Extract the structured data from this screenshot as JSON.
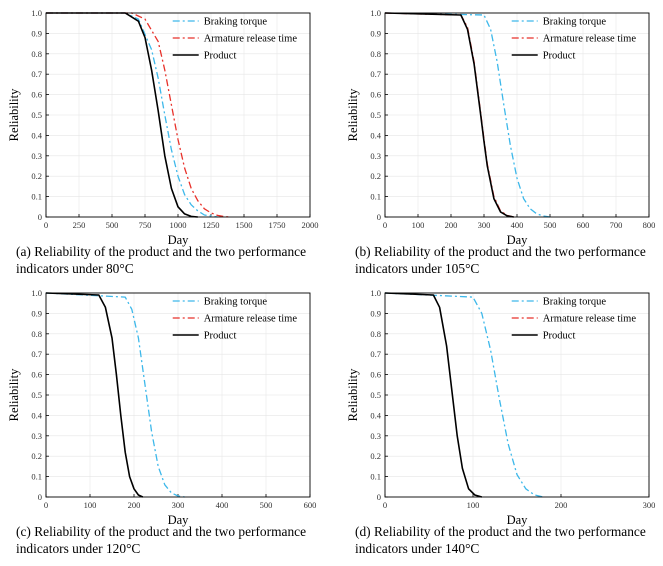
{
  "legend": {
    "braking_torque": "Braking torque",
    "armature_release_time": "Armature release time",
    "product": "Product"
  },
  "colors": {
    "braking_torque": "#3db8ea",
    "armature_release_time": "#e8312a",
    "product": "#000000"
  },
  "chart_data": [
    {
      "type": "line",
      "caption_line1": "(a) Reliability of the product and the two performance",
      "caption_line2": "indicators under 80°C",
      "xlabel": "Day",
      "ylabel": "Reliability",
      "xlim": [
        0,
        2000
      ],
      "ylim": [
        0,
        1.0
      ],
      "xticks": [
        "0",
        "250",
        "500",
        "750",
        "1000",
        "1250",
        "1500",
        "1750",
        "2000"
      ],
      "yticks": [
        "0",
        "0.1",
        "0.2",
        "0.3",
        "0.4",
        "0.5",
        "0.6",
        "0.7",
        "0.8",
        "0.9",
        "1.0"
      ],
      "series": [
        {
          "name": "Braking torque",
          "x": [
            0,
            600,
            700,
            800,
            850,
            900,
            950,
            1000,
            1050,
            1100,
            1150,
            1200,
            1250,
            1300
          ],
          "y": [
            1.0,
            1.0,
            0.97,
            0.82,
            0.68,
            0.5,
            0.33,
            0.2,
            0.11,
            0.06,
            0.03,
            0.01,
            0.005,
            0.0
          ]
        },
        {
          "name": "Armature release time",
          "x": [
            0,
            650,
            750,
            850,
            900,
            950,
            1000,
            1050,
            1100,
            1150,
            1200,
            1250,
            1300,
            1350,
            1400
          ],
          "y": [
            1.0,
            1.0,
            0.97,
            0.86,
            0.72,
            0.55,
            0.38,
            0.24,
            0.14,
            0.08,
            0.04,
            0.02,
            0.008,
            0.002,
            0.0
          ]
        },
        {
          "name": "Product",
          "x": [
            0,
            600,
            700,
            750,
            800,
            850,
            900,
            950,
            1000,
            1050,
            1100,
            1150
          ],
          "y": [
            1.0,
            1.0,
            0.96,
            0.88,
            0.72,
            0.52,
            0.3,
            0.14,
            0.05,
            0.015,
            0.003,
            0.0
          ]
        }
      ]
    },
    {
      "type": "line",
      "caption_line1": "(b) Reliability of the product and the two performance",
      "caption_line2": "indicators under 105°C",
      "xlabel": "Day",
      "ylabel": "Reliability",
      "xlim": [
        0,
        800
      ],
      "ylim": [
        0,
        1.0
      ],
      "xticks": [
        "0",
        "100",
        "200",
        "300",
        "400",
        "500",
        "600",
        "700",
        "800"
      ],
      "yticks": [
        "0",
        "0.1",
        "0.2",
        "0.3",
        "0.4",
        "0.5",
        "0.6",
        "0.7",
        "0.8",
        "0.9",
        "1.0"
      ],
      "series": [
        {
          "name": "Braking torque",
          "x": [
            0,
            300,
            320,
            340,
            360,
            380,
            400,
            420,
            440,
            460,
            480,
            500
          ],
          "y": [
            1.0,
            0.99,
            0.92,
            0.76,
            0.55,
            0.35,
            0.19,
            0.09,
            0.04,
            0.015,
            0.005,
            0.0
          ]
        },
        {
          "name": "Armature release time",
          "x": [
            0,
            230,
            250,
            270,
            290,
            300,
            310,
            330,
            350,
            370,
            390
          ],
          "y": [
            1.0,
            0.99,
            0.93,
            0.76,
            0.51,
            0.38,
            0.26,
            0.1,
            0.03,
            0.008,
            0.0
          ]
        },
        {
          "name": "Product",
          "x": [
            0,
            230,
            250,
            270,
            290,
            300,
            310,
            330,
            350,
            370,
            390
          ],
          "y": [
            1.0,
            0.99,
            0.92,
            0.75,
            0.5,
            0.37,
            0.25,
            0.09,
            0.025,
            0.006,
            0.0
          ]
        }
      ]
    },
    {
      "type": "line",
      "caption_line1": "(c) Reliability of the product and the two performance",
      "caption_line2": "indicators under 120°C",
      "xlabel": "Day",
      "ylabel": "Reliability",
      "xlim": [
        0,
        600
      ],
      "ylim": [
        0,
        1.0
      ],
      "xticks": [
        "0",
        "100",
        "200",
        "300",
        "400",
        "500",
        "600"
      ],
      "yticks": [
        "0",
        "0.1",
        "0.2",
        "0.3",
        "0.4",
        "0.5",
        "0.6",
        "0.7",
        "0.8",
        "0.9",
        "1.0"
      ],
      "series": [
        {
          "name": "Braking torque",
          "x": [
            0,
            180,
            195,
            210,
            225,
            240,
            255,
            270,
            285,
            300,
            315
          ],
          "y": [
            1.0,
            0.98,
            0.92,
            0.78,
            0.55,
            0.32,
            0.15,
            0.06,
            0.02,
            0.005,
            0.0
          ]
        },
        {
          "name": "Armature release time",
          "x": [],
          "y": []
        },
        {
          "name": "Product",
          "x": [
            0,
            120,
            135,
            150,
            160,
            170,
            180,
            190,
            200,
            210,
            220
          ],
          "y": [
            1.0,
            0.99,
            0.93,
            0.78,
            0.6,
            0.4,
            0.22,
            0.1,
            0.04,
            0.01,
            0.0
          ]
        }
      ]
    },
    {
      "type": "line",
      "caption_line1": "(d) Reliability of the product and the two performance",
      "caption_line2": "indicators under 140°C",
      "xlabel": "Day",
      "ylabel": "Reliability",
      "xlim": [
        0,
        300
      ],
      "ylim": [
        0,
        1.0
      ],
      "xticks": [
        "0",
        "100",
        "200",
        "300"
      ],
      "yticks": [
        "0",
        "0.1",
        "0.2",
        "0.3",
        "0.4",
        "0.5",
        "0.6",
        "0.7",
        "0.8",
        "0.9",
        "1.0"
      ],
      "series": [
        {
          "name": "Braking torque",
          "x": [
            0,
            100,
            110,
            120,
            130,
            140,
            150,
            160,
            170,
            180
          ],
          "y": [
            1.0,
            0.98,
            0.9,
            0.72,
            0.48,
            0.26,
            0.11,
            0.04,
            0.01,
            0.0
          ]
        },
        {
          "name": "Armature release time",
          "x": [],
          "y": []
        },
        {
          "name": "Product",
          "x": [
            0,
            55,
            62,
            70,
            76,
            82,
            88,
            95,
            102,
            110
          ],
          "y": [
            1.0,
            0.99,
            0.93,
            0.74,
            0.52,
            0.3,
            0.14,
            0.04,
            0.01,
            0.0
          ]
        }
      ]
    }
  ]
}
